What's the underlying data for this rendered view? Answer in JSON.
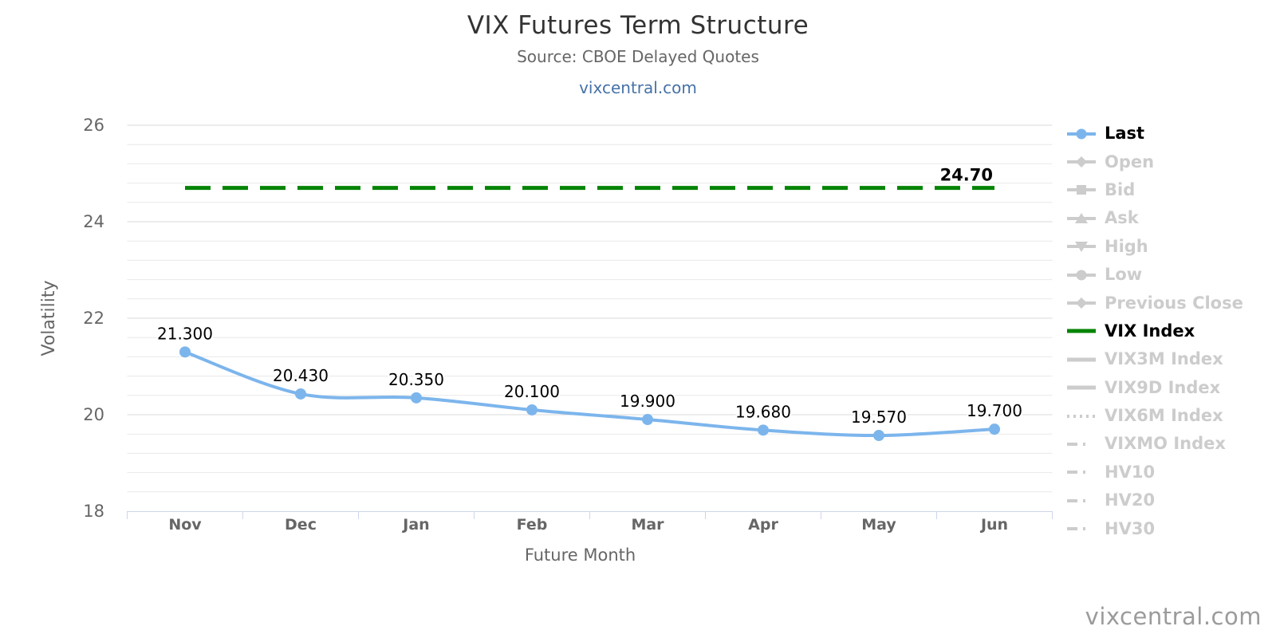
{
  "header": {
    "title": "VIX Futures Term Structure",
    "subtitle": "Source: CBOE Delayed Quotes",
    "link": "vixcentral.com"
  },
  "footer": {
    "watermark": "vixcentral.com"
  },
  "chart_data": {
    "type": "line",
    "title": "VIX Futures Term Structure",
    "subtitle": "Source: CBOE Delayed Quotes",
    "xlabel": "Future Month",
    "ylabel": "Volatility",
    "categories": [
      "Nov",
      "Dec",
      "Jan",
      "Feb",
      "Mar",
      "Apr",
      "May",
      "Jun"
    ],
    "ylim": [
      18,
      26
    ],
    "ytick_interval": 2,
    "yticks": [
      "18",
      "20",
      "22",
      "24",
      "26"
    ],
    "minor_tick_interval": 0.4,
    "grid": true,
    "legend_position": "right",
    "colors": {
      "last_series": "#7cb5ec",
      "vix_index_series": "#068406",
      "inactive_legend": "#cccccc",
      "grid_minor": "#e9e9e9",
      "grid_major": "#d9d9d9",
      "axis_line": "#ccd6eb",
      "axis_text": "#666666",
      "data_label": "#000000"
    },
    "series": [
      {
        "name": "Last",
        "kind": "spline",
        "color": "#7cb5ec",
        "marker": "circle",
        "values": [
          21.3,
          20.43,
          20.35,
          20.1,
          19.9,
          19.68,
          19.57,
          19.7
        ],
        "labels": [
          "21.300",
          "20.430",
          "20.350",
          "20.100",
          "19.900",
          "19.680",
          "19.570",
          "19.700"
        ]
      },
      {
        "name": "VIX Index",
        "kind": "hline",
        "color": "#068406",
        "dash": "dashed",
        "value": 24.7,
        "label": "24.70"
      }
    ],
    "legend": [
      {
        "label": "Last",
        "symbol": "line-circle",
        "active": true,
        "color": "#7cb5ec"
      },
      {
        "label": "Open",
        "symbol": "line-diamond",
        "active": false,
        "color": "#cccccc"
      },
      {
        "label": "Bid",
        "symbol": "line-square",
        "active": false,
        "color": "#cccccc"
      },
      {
        "label": "Ask",
        "symbol": "line-triangle-up",
        "active": false,
        "color": "#cccccc"
      },
      {
        "label": "High",
        "symbol": "line-triangle-down",
        "active": false,
        "color": "#cccccc"
      },
      {
        "label": "Low",
        "symbol": "line-circle",
        "active": false,
        "color": "#cccccc"
      },
      {
        "label": "Previous Close",
        "symbol": "line-diamond",
        "active": false,
        "color": "#cccccc"
      },
      {
        "label": "VIX Index",
        "symbol": "solid-line",
        "active": true,
        "color": "#068406"
      },
      {
        "label": "VIX3M Index",
        "symbol": "solid-line",
        "active": false,
        "color": "#cccccc"
      },
      {
        "label": "VIX9D Index",
        "symbol": "solid-line",
        "active": false,
        "color": "#cccccc"
      },
      {
        "label": "VIX6M Index",
        "symbol": "dotted-line",
        "active": false,
        "color": "#cccccc"
      },
      {
        "label": "VIXMO Index",
        "symbol": "dashdot-line",
        "active": false,
        "color": "#cccccc"
      },
      {
        "label": "HV10",
        "symbol": "dashdot-line",
        "active": false,
        "color": "#cccccc"
      },
      {
        "label": "HV20",
        "symbol": "dashdot-line",
        "active": false,
        "color": "#cccccc"
      },
      {
        "label": "HV30",
        "symbol": "dashdot-line",
        "active": false,
        "color": "#cccccc"
      }
    ]
  }
}
